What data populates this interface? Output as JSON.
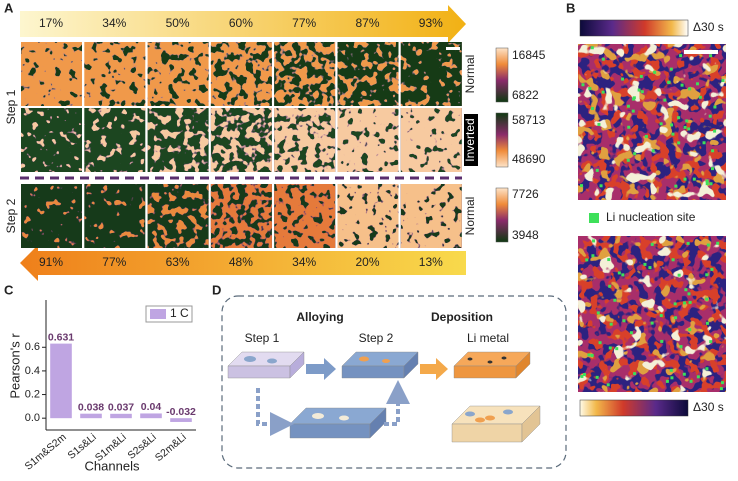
{
  "panel_labels": [
    "A",
    "B",
    "C",
    "D"
  ],
  "panel_a": {
    "top_percentages": [
      "17%",
      "34%",
      "50%",
      "60%",
      "77%",
      "87%",
      "93%"
    ],
    "bottom_percentages": [
      "91%",
      "77%",
      "63%",
      "48%",
      "34%",
      "20%",
      "13%"
    ],
    "rows": [
      "Step 1",
      "Step 2"
    ],
    "modes": [
      "Normal",
      "Inverted",
      "Normal"
    ],
    "colorbars": [
      [
        16845,
        6822
      ],
      [
        58713,
        48690
      ],
      [
        7726,
        3948
      ]
    ]
  },
  "panel_b": {
    "colorbar_top": "Δ30 s",
    "colorbar_bottom": "Δ30 s",
    "legend": "Li nucleation site"
  },
  "chart_data": {
    "type": "bar",
    "xlabel": "Channels",
    "ylabel": "Pearson's r",
    "categories": [
      "S1m&S2m",
      "S1s&Li",
      "S1m&Li",
      "S2s&Li",
      "S2m&Li"
    ],
    "series": [
      {
        "name": "1 C",
        "color": "#bfa5e2",
        "values": [
          0.631,
          0.038,
          0.037,
          0.04,
          -0.032
        ]
      }
    ],
    "ylim": [
      -0.1,
      1.0
    ],
    "yticks": [
      {
        "value": 0,
        "label": "0.0"
      },
      {
        "value": 0.2,
        "label": "0.2"
      },
      {
        "value": 0.4,
        "label": "0.4"
      },
      {
        "value": 0.6,
        "label": "0.6"
      }
    ],
    "legend": "upper right"
  },
  "panel_d": {
    "phases": [
      "Alloying",
      "Deposition"
    ],
    "stages": [
      "Step 1",
      "Step 2",
      "Li metal"
    ]
  }
}
